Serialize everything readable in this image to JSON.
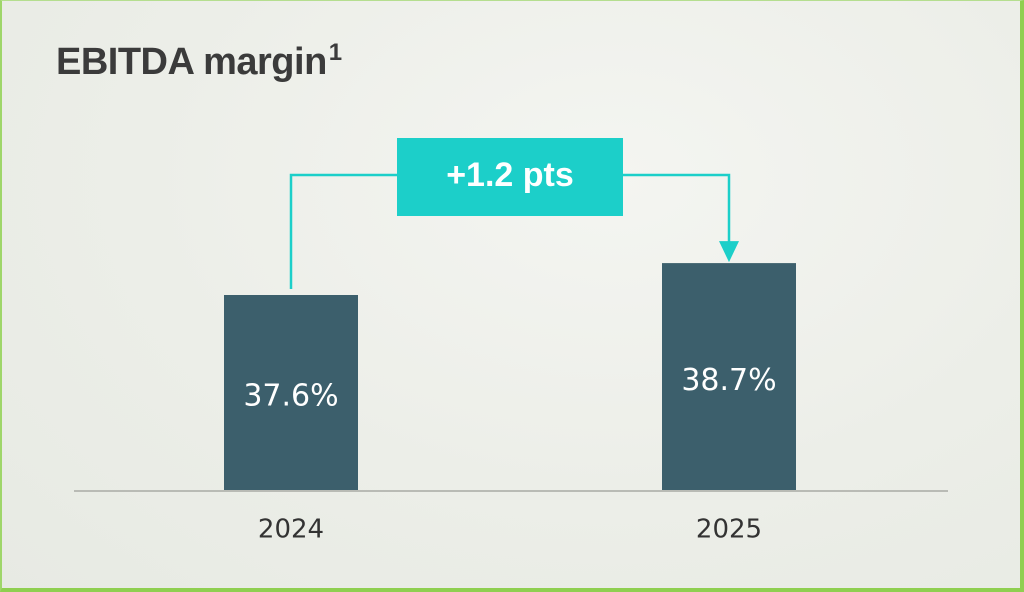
{
  "chart_data": {
    "type": "bar",
    "title": "EBITDA margin",
    "title_footnote": "1",
    "categories": [
      "2024",
      "2025"
    ],
    "values": [
      37.6,
      38.7
    ],
    "value_labels": [
      "37.6%",
      "38.7%"
    ],
    "unit": "%",
    "annotation": {
      "text": "+1.2 pts",
      "from": "2024",
      "to": "2025"
    },
    "xlabel": "",
    "ylabel": "",
    "grid": false,
    "legend": "none"
  },
  "colors": {
    "bar": "#3c5f6c",
    "annotation": "#1ccfc9",
    "axis": "#b9bbb5",
    "frame_border": "#8fcf50"
  }
}
